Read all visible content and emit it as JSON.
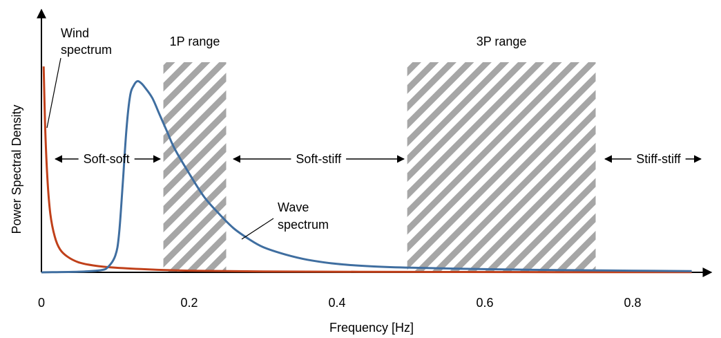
{
  "chart_data": {
    "type": "line",
    "xlabel": "Frequency [Hz]",
    "ylabel": "Power Spectral Density",
    "xlim": [
      0,
      0.9
    ],
    "x_ticks": [
      0,
      0.2,
      0.4,
      0.6,
      0.8
    ],
    "x_tick_labels": [
      "0",
      "0.2",
      "0.4",
      "0.6",
      "0.8"
    ],
    "y_ticks_shown": false,
    "grid": false,
    "colors": {
      "wind": "#c0401a",
      "wave": "#3f6ea0",
      "hatch": "#a6a6a6"
    },
    "series": [
      {
        "label_line1": "Wind",
        "label_line2": "spectrum",
        "color": "#c0401a",
        "x": [
          0.003,
          0.005,
          0.008,
          0.012,
          0.018,
          0.025,
          0.035,
          0.05,
          0.07,
          0.1,
          0.15,
          0.2,
          0.3,
          0.5,
          0.7,
          0.88
        ],
        "y": [
          0.98,
          0.7,
          0.45,
          0.28,
          0.17,
          0.11,
          0.075,
          0.048,
          0.033,
          0.022,
          0.013,
          0.008,
          0.004,
          0.002,
          0.001,
          0.001
        ]
      },
      {
        "label_line1": "Wave",
        "label_line2": "spectrum",
        "color": "#3f6ea0",
        "x": [
          0.0,
          0.05,
          0.08,
          0.09,
          0.1,
          0.105,
          0.11,
          0.115,
          0.12,
          0.125,
          0.13,
          0.135,
          0.14,
          0.15,
          0.16,
          0.17,
          0.18,
          0.2,
          0.22,
          0.24,
          0.26,
          0.28,
          0.3,
          0.33,
          0.36,
          0.4,
          0.45,
          0.5,
          0.6,
          0.7,
          0.8,
          0.88
        ],
        "y": [
          0.0,
          0.003,
          0.01,
          0.025,
          0.08,
          0.18,
          0.42,
          0.68,
          0.84,
          0.89,
          0.91,
          0.9,
          0.88,
          0.83,
          0.75,
          0.67,
          0.59,
          0.47,
          0.36,
          0.28,
          0.21,
          0.16,
          0.12,
          0.085,
          0.06,
          0.04,
          0.028,
          0.022,
          0.015,
          0.011,
          0.008,
          0.006
        ]
      }
    ],
    "ranges": [
      {
        "label": "1P range",
        "x_start": 0.165,
        "x_end": 0.25
      },
      {
        "label": "3P range",
        "x_start": 0.495,
        "x_end": 0.75
      }
    ],
    "regions": [
      {
        "label": "Soft-soft",
        "x": 0.088
      },
      {
        "label": "Soft-stiff",
        "x": 0.375
      },
      {
        "label": "Stiff-stiff",
        "x": 0.835
      }
    ]
  }
}
